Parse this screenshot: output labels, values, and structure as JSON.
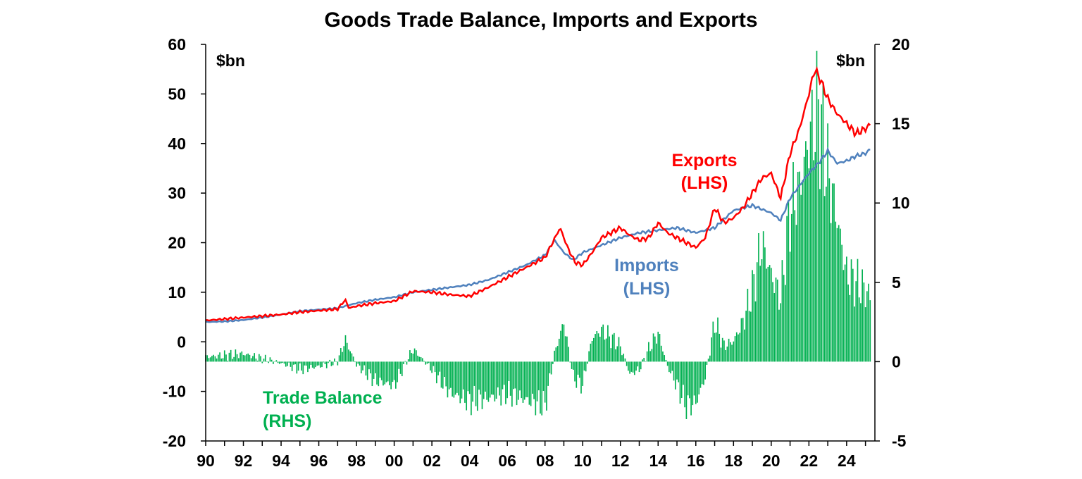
{
  "chart_data": {
    "type": "bar+line",
    "title": "Goods Trade Balance, Imports and Exports",
    "left_axis": {
      "unit_label": "$bn",
      "range": [
        -20,
        60
      ],
      "ticks": [
        60,
        50,
        40,
        30,
        20,
        10,
        0,
        -10,
        -20
      ]
    },
    "right_axis": {
      "unit_label": "$bn",
      "range": [
        -5,
        20
      ],
      "ticks": [
        20,
        15,
        10,
        5,
        0,
        -5
      ]
    },
    "x_axis": {
      "range": [
        1990,
        2025.5
      ],
      "tick_labels": [
        "90",
        "92",
        "94",
        "96",
        "98",
        "00",
        "02",
        "04",
        "06",
        "08",
        "10",
        "12",
        "14",
        "16",
        "18",
        "20",
        "22",
        "24"
      ]
    },
    "grid": false,
    "colors": {
      "exports": "#ff0000",
      "imports": "#4f81bd",
      "trade_balance": "#00b050"
    },
    "annotations": {
      "exports": [
        "Exports",
        "(LHS)"
      ],
      "imports": [
        "Imports",
        "(LHS)"
      ],
      "trade_balance": [
        "Trade Balance",
        "(RHS)"
      ]
    },
    "series": [
      {
        "name": "Exports",
        "axis": "left",
        "type": "line",
        "x": [
          1990,
          1991,
          1992,
          1993,
          1994,
          1995,
          1996,
          1997,
          1997.4,
          1997.6,
          1998,
          1999,
          2000,
          2000.5,
          2001,
          2002,
          2003,
          2004,
          2005,
          2006,
          2007,
          2008,
          2008.4,
          2008.8,
          2009.2,
          2009.6,
          2010,
          2010.5,
          2011,
          2011.5,
          2012,
          2012.5,
          2013,
          2013.5,
          2014,
          2014.5,
          2015,
          2015.5,
          2016,
          2016.5,
          2017,
          2017.5,
          2018,
          2018.5,
          2019,
          2019.5,
          2020,
          2020.5,
          2021,
          2021.5,
          2022,
          2022.3,
          2022.6,
          2023,
          2023.5,
          2024,
          2024.5,
          2025,
          2025.3
        ],
        "y": [
          4.3,
          4.6,
          4.9,
          5.2,
          5.5,
          6.0,
          6.3,
          6.6,
          8.5,
          6.8,
          7.2,
          7.8,
          8.2,
          9.2,
          10.2,
          10.0,
          9.5,
          9.2,
          11.0,
          13.0,
          15.0,
          17.0,
          20.0,
          23.0,
          19.0,
          16.0,
          15.5,
          18.0,
          21.0,
          22.0,
          23.0,
          21.5,
          20.5,
          21.0,
          24.0,
          22.0,
          21.0,
          20.0,
          19.0,
          21.0,
          27.0,
          24.0,
          25.0,
          27.0,
          30.0,
          33.0,
          34.0,
          29.0,
          38.0,
          43.0,
          50.0,
          55.0,
          53.0,
          49.0,
          46.0,
          44.0,
          42.0,
          43.0,
          44.0
        ]
      },
      {
        "name": "Imports",
        "axis": "left",
        "type": "line",
        "x": [
          1990,
          1991,
          1992,
          1993,
          1994,
          1995,
          1996,
          1997,
          1998,
          1999,
          2000,
          2001,
          2002,
          2003,
          2004,
          2005,
          2006,
          2007,
          2008,
          2008.5,
          2009,
          2009.5,
          2010,
          2011,
          2012,
          2013,
          2014,
          2015,
          2016,
          2017,
          2018,
          2019,
          2020,
          2020.5,
          2021,
          2022,
          2022.5,
          2023,
          2023.5,
          2024,
          2024.5,
          2025,
          2025.3
        ],
        "y": [
          4.0,
          4.1,
          4.4,
          4.9,
          5.5,
          6.2,
          6.5,
          6.8,
          7.8,
          8.5,
          9.0,
          10.0,
          10.5,
          11.0,
          11.5,
          12.5,
          14.0,
          15.5,
          17.5,
          20.5,
          18.0,
          16.5,
          18.0,
          19.5,
          21.0,
          22.0,
          22.5,
          23.0,
          22.0,
          23.0,
          26.5,
          27.5,
          26.0,
          24.5,
          29.0,
          34.0,
          36.0,
          38.5,
          36.0,
          36.5,
          37.5,
          38.0,
          39.0
        ]
      },
      {
        "name": "Trade Balance",
        "axis": "right",
        "type": "bar",
        "x": [
          1990,
          1991,
          1992,
          1993,
          1994,
          1995,
          1996,
          1997,
          1997.4,
          1998,
          1999,
          2000,
          2001,
          2002,
          2003,
          2004,
          2005,
          2006,
          2007,
          2008,
          2008.5,
          2009,
          2009.5,
          2010,
          2010.5,
          2011,
          2011.5,
          2012,
          2012.5,
          2013,
          2013.5,
          2014,
          2014.5,
          2015,
          2015.5,
          2016,
          2016.5,
          2017,
          2017.5,
          2018,
          2018.5,
          2019,
          2019.5,
          2020,
          2020.5,
          2021,
          2021.5,
          2022,
          2022.5,
          2023,
          2023.5,
          2024,
          2024.5,
          2025,
          2025.3
        ],
        "y": [
          0.3,
          0.4,
          0.5,
          0.2,
          -0.1,
          -0.5,
          -0.3,
          0.0,
          1.4,
          -0.2,
          -1.2,
          -1.5,
          0.8,
          -0.5,
          -2.0,
          -2.5,
          -2.3,
          -2.0,
          -2.4,
          -2.8,
          0.5,
          2.5,
          -1.0,
          -1.5,
          1.5,
          2.0,
          1.5,
          1.0,
          -0.8,
          -0.5,
          0.8,
          1.8,
          -0.3,
          -1.5,
          -2.8,
          -2.6,
          -1.0,
          2.5,
          1.0,
          1.3,
          2.5,
          4.5,
          7.5,
          5.5,
          4.0,
          9.5,
          11.0,
          14.0,
          16.0,
          12.0,
          9.0,
          5.5,
          5.0,
          4.5,
          4.0
        ]
      }
    ]
  }
}
